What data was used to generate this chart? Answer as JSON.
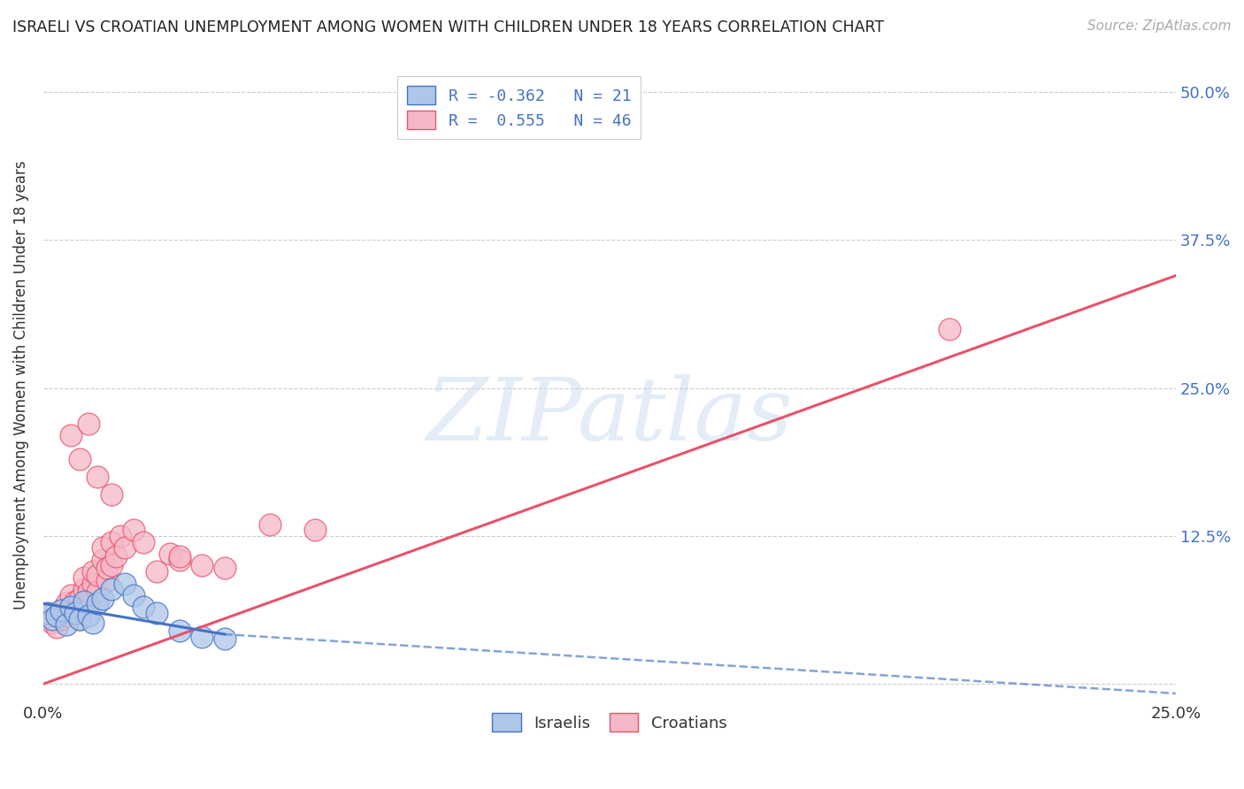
{
  "title": "ISRAELI VS CROATIAN UNEMPLOYMENT AMONG WOMEN WITH CHILDREN UNDER 18 YEARS CORRELATION CHART",
  "source": "Source: ZipAtlas.com",
  "ylabel": "Unemployment Among Women with Children Under 18 years",
  "watermark": "ZIPatlas",
  "xlim": [
    0.0,
    0.25
  ],
  "ylim": [
    -0.015,
    0.52
  ],
  "xticks": [
    0.0,
    0.05,
    0.1,
    0.15,
    0.2,
    0.25
  ],
  "xtick_labels": [
    "0.0%",
    "",
    "",
    "",
    "",
    "25.0%"
  ],
  "yticks": [
    0.0,
    0.125,
    0.25,
    0.375,
    0.5
  ],
  "right_ytick_labels": [
    "",
    "12.5%",
    "25.0%",
    "37.5%",
    "50.0%"
  ],
  "legend_R_israeli": "-0.362",
  "legend_N_israeli": "21",
  "legend_R_croatian": "0.555",
  "legend_N_croatian": "46",
  "israeli_color": "#aec6e8",
  "croatian_color": "#f5b8c8",
  "israeli_line_color": "#4472C4",
  "croatian_line_color": "#E8526A",
  "background_color": "#ffffff",
  "israeli_points": [
    [
      0.001,
      0.06
    ],
    [
      0.002,
      0.055
    ],
    [
      0.003,
      0.058
    ],
    [
      0.004,
      0.062
    ],
    [
      0.005,
      0.05
    ],
    [
      0.006,
      0.065
    ],
    [
      0.007,
      0.06
    ],
    [
      0.008,
      0.055
    ],
    [
      0.009,
      0.07
    ],
    [
      0.01,
      0.058
    ],
    [
      0.011,
      0.052
    ],
    [
      0.012,
      0.068
    ],
    [
      0.013,
      0.072
    ],
    [
      0.015,
      0.08
    ],
    [
      0.018,
      0.085
    ],
    [
      0.02,
      0.075
    ],
    [
      0.022,
      0.065
    ],
    [
      0.025,
      0.06
    ],
    [
      0.03,
      0.045
    ],
    [
      0.035,
      0.04
    ],
    [
      0.04,
      0.038
    ]
  ],
  "croatian_points": [
    [
      0.001,
      0.058
    ],
    [
      0.002,
      0.052
    ],
    [
      0.003,
      0.048
    ],
    [
      0.004,
      0.055
    ],
    [
      0.004,
      0.062
    ],
    [
      0.005,
      0.058
    ],
    [
      0.005,
      0.068
    ],
    [
      0.006,
      0.06
    ],
    [
      0.006,
      0.075
    ],
    [
      0.007,
      0.065
    ],
    [
      0.007,
      0.07
    ],
    [
      0.008,
      0.055
    ],
    [
      0.008,
      0.072
    ],
    [
      0.009,
      0.08
    ],
    [
      0.009,
      0.09
    ],
    [
      0.01,
      0.068
    ],
    [
      0.01,
      0.078
    ],
    [
      0.011,
      0.085
    ],
    [
      0.011,
      0.095
    ],
    [
      0.012,
      0.078
    ],
    [
      0.012,
      0.092
    ],
    [
      0.013,
      0.105
    ],
    [
      0.013,
      0.115
    ],
    [
      0.014,
      0.088
    ],
    [
      0.014,
      0.098
    ],
    [
      0.015,
      0.1
    ],
    [
      0.015,
      0.12
    ],
    [
      0.016,
      0.108
    ],
    [
      0.017,
      0.125
    ],
    [
      0.018,
      0.115
    ],
    [
      0.02,
      0.13
    ],
    [
      0.022,
      0.12
    ],
    [
      0.025,
      0.095
    ],
    [
      0.028,
      0.11
    ],
    [
      0.03,
      0.105
    ],
    [
      0.035,
      0.1
    ],
    [
      0.04,
      0.098
    ],
    [
      0.006,
      0.21
    ],
    [
      0.008,
      0.19
    ],
    [
      0.01,
      0.22
    ],
    [
      0.012,
      0.175
    ],
    [
      0.015,
      0.16
    ],
    [
      0.05,
      0.135
    ],
    [
      0.06,
      0.13
    ],
    [
      0.2,
      0.3
    ],
    [
      0.03,
      0.108
    ]
  ],
  "isr_line_x0": 0.0,
  "isr_line_x_solid_end": 0.04,
  "isr_line_x1": 0.25,
  "isr_line_y0": 0.068,
  "isr_line_y_solid_end": 0.042,
  "isr_line_y1": -0.008,
  "cro_line_x0": 0.0,
  "cro_line_x1": 0.25,
  "cro_line_y0": 0.0,
  "cro_line_y1": 0.345
}
